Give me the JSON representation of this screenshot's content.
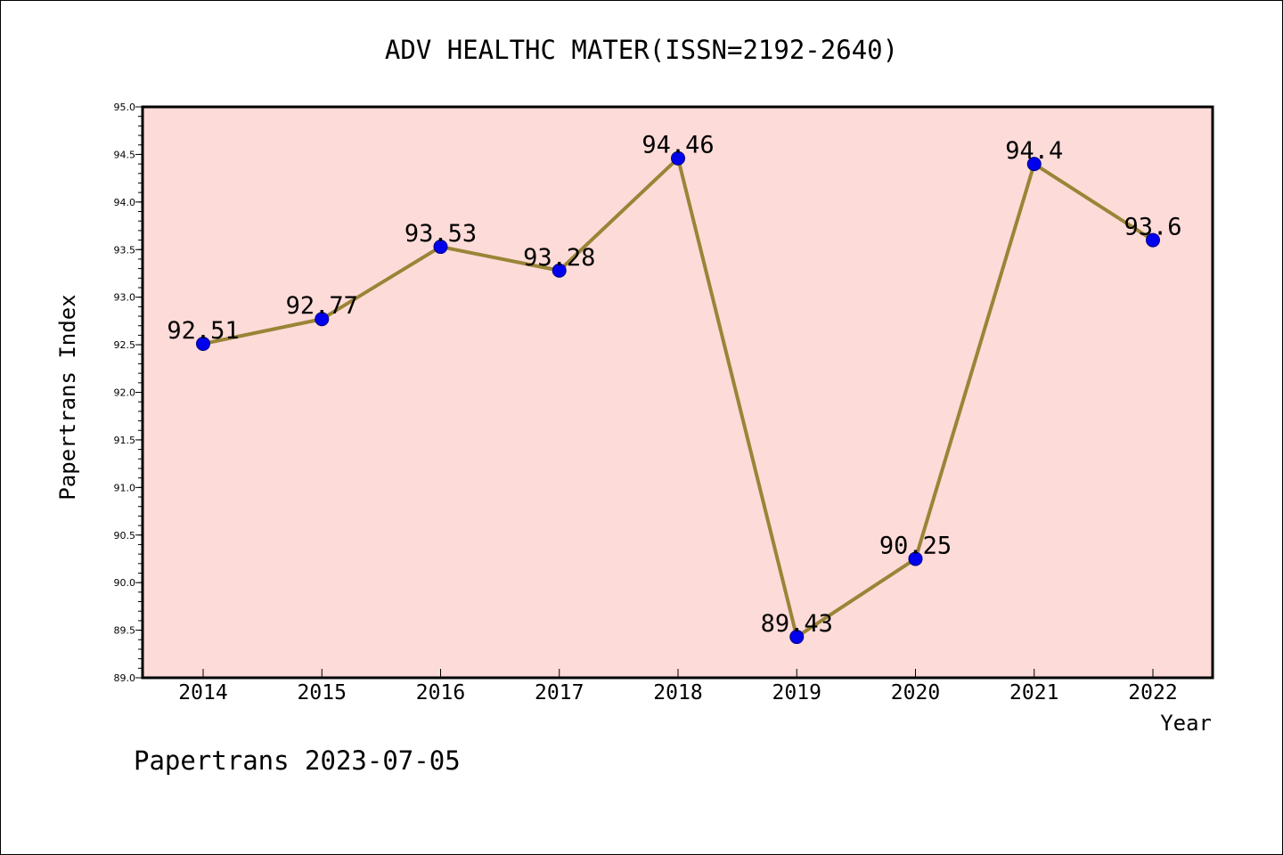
{
  "chart_data": {
    "type": "line",
    "title": "ADV HEALTHC MATER(ISSN=2192-2640)",
    "xlabel": "Year",
    "ylabel": "Papertrans Index",
    "x": [
      "2014",
      "2015",
      "2016",
      "2017",
      "2018",
      "2019",
      "2020",
      "2021",
      "2022"
    ],
    "series": [
      {
        "values": [
          92.51,
          92.77,
          93.53,
          93.28,
          94.46,
          89.43,
          90.25,
          94.4,
          93.6
        ],
        "point_labels": [
          "92.51",
          "92.77",
          "93.53",
          "93.28",
          "94.46",
          "89.43",
          "90.25",
          "94.4",
          "93.6"
        ]
      }
    ],
    "ylim": [
      89.0,
      95.0
    ],
    "y_ticks": [
      "89.0",
      "89.5",
      "90.0",
      "90.5",
      "91.0",
      "91.5",
      "92.0",
      "92.5",
      "93.0",
      "93.5",
      "94.0",
      "94.5",
      "95.0"
    ],
    "grid": false,
    "legend": "none",
    "colors": {
      "plot_background": "#fddbd8",
      "line": "#9a8437",
      "marker": "#0000ee",
      "marker_edge": "#000080"
    }
  },
  "footer": "Papertrans 2023-07-05"
}
